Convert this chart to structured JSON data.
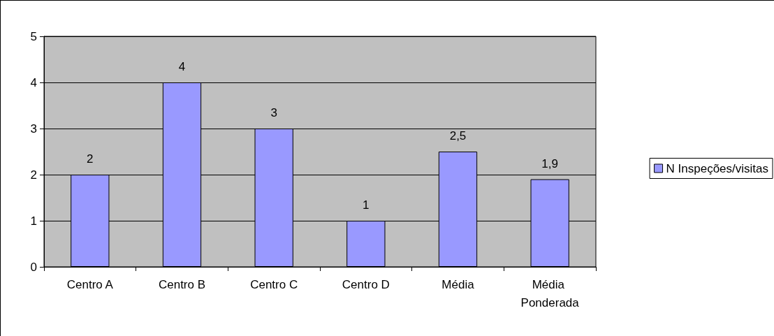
{
  "chart_data": {
    "type": "bar",
    "categories": [
      "Centro A",
      "Centro B",
      "Centro C",
      "Centro D",
      "Média",
      "Média Ponderada"
    ],
    "series": [
      {
        "name": "N Inspeções/visitas",
        "color": "#9999ff",
        "values": [
          2,
          4,
          3,
          1,
          2.5,
          1.9
        ],
        "value_labels": [
          "2",
          "4",
          "3",
          "1",
          "2,5",
          "1,9"
        ]
      }
    ],
    "ylim": [
      0,
      5
    ],
    "yticks": [
      0,
      1,
      2,
      3,
      4,
      5
    ],
    "grid": "y",
    "legend": "right"
  }
}
